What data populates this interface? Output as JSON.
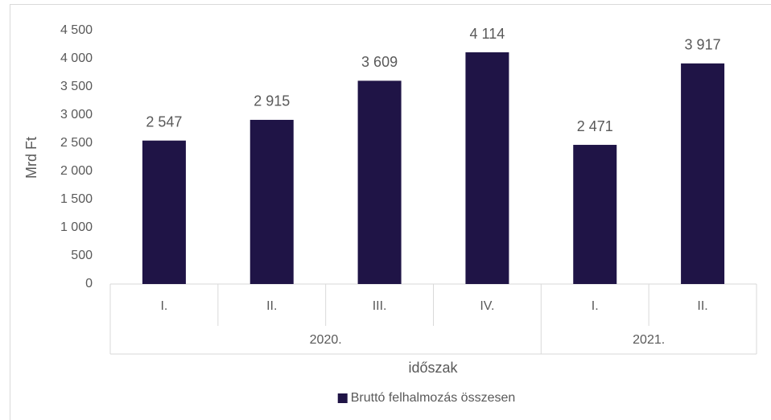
{
  "chart_data": {
    "type": "bar",
    "groups": [
      {
        "name": "2020.",
        "categories": [
          "I.",
          "II.",
          "III.",
          "IV."
        ]
      },
      {
        "name": "2021.",
        "categories": [
          "I.",
          "II."
        ]
      }
    ],
    "series": [
      {
        "name": "Bruttó felhalmozás összesen",
        "color": "#1f1446",
        "values": [
          2547,
          2915,
          3609,
          4114,
          2471,
          3917
        ],
        "value_labels": [
          "2 547",
          "2 915",
          "3 609",
          "4 114",
          "2 471",
          "3 917"
        ]
      }
    ],
    "y_label": "Mrd Ft",
    "x_label": "időszak",
    "ylim": [
      0,
      4500
    ],
    "yticks": [
      0,
      500,
      {
        "value": 1000,
        "label": "1 000"
      },
      {
        "value": 1500,
        "label": "1 500"
      },
      {
        "value": 2000,
        "label": "2 000"
      },
      {
        "value": 2500,
        "label": "2 500"
      },
      {
        "value": 3000,
        "label": "3 000"
      },
      {
        "value": 3500,
        "label": "3 500"
      },
      {
        "value": 4000,
        "label": "4 000"
      },
      {
        "value": 4500,
        "label": "4 500"
      }
    ],
    "legend": "bottom"
  }
}
